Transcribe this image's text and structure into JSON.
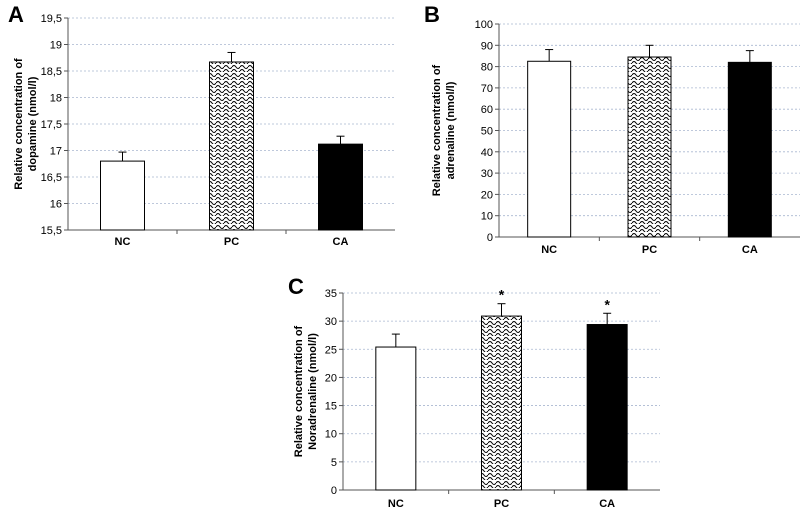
{
  "chart_data": [
    {
      "type": "bar",
      "panel": "A",
      "categories": [
        "NC",
        "PC",
        "CA"
      ],
      "values": [
        16.8,
        18.67,
        17.12
      ],
      "errors": [
        0.17,
        0.18,
        0.15
      ],
      "ylabel_line1": "Relative concentration of",
      "ylabel_line2": "dopamine (nmol/l)",
      "ylim": [
        15.5,
        19.5
      ],
      "yticks": [
        15.5,
        16,
        16.5,
        17,
        17.5,
        18,
        18.5,
        19,
        19.5
      ],
      "ytick_labels": [
        "15,5",
        "16",
        "16,5",
        "17",
        "17,5",
        "18",
        "18,5",
        "19",
        "19,5"
      ],
      "fills": [
        "white",
        "pattern",
        "black"
      ],
      "annotations": [
        "",
        "",
        ""
      ],
      "grid": true
    },
    {
      "type": "bar",
      "panel": "B",
      "categories": [
        "NC",
        "PC",
        "CA"
      ],
      "values": [
        82.5,
        84.5,
        82
      ],
      "errors": [
        5.5,
        5.5,
        5.5
      ],
      "ylabel_line1": "Relative concentration of",
      "ylabel_line2": "adrenaline (nmol/l)",
      "ylim": [
        0,
        100
      ],
      "yticks": [
        0,
        10,
        20,
        30,
        40,
        50,
        60,
        70,
        80,
        90,
        100
      ],
      "ytick_labels": [
        "0",
        "10",
        "20",
        "30",
        "40",
        "50",
        "60",
        "70",
        "80",
        "90",
        "100"
      ],
      "fills": [
        "white",
        "pattern",
        "black"
      ],
      "annotations": [
        "",
        "",
        ""
      ],
      "grid": true
    },
    {
      "type": "bar",
      "panel": "C",
      "categories": [
        "NC",
        "PC",
        "CA"
      ],
      "values": [
        25.4,
        30.9,
        29.4
      ],
      "errors": [
        2.3,
        2.2,
        2.0
      ],
      "ylabel_line1": "Relative concentration of",
      "ylabel_line2": "Noradrenaline  (nmol/l)",
      "ylim": [
        0,
        35
      ],
      "yticks": [
        0,
        5,
        10,
        15,
        20,
        25,
        30,
        35
      ],
      "ytick_labels": [
        "0",
        "5",
        "10",
        "15",
        "20",
        "25",
        "30",
        "35"
      ],
      "fills": [
        "white",
        "pattern",
        "black"
      ],
      "annotations": [
        "",
        "*",
        "*"
      ],
      "grid": true
    }
  ]
}
